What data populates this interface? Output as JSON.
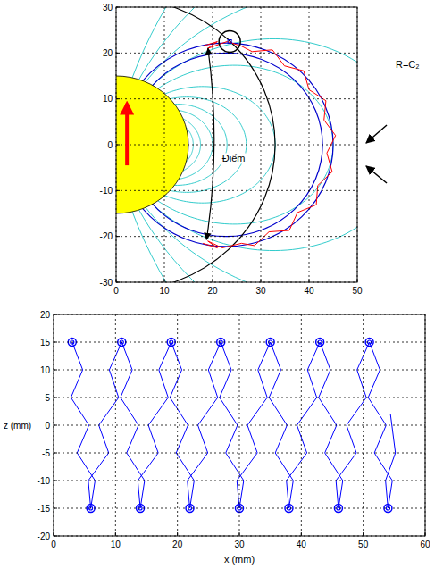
{
  "chart_data": [
    {
      "type": "field_diagram",
      "xlim": [
        0,
        50
      ],
      "ylim": [
        -30,
        30
      ],
      "xticks": [
        0,
        10,
        20,
        30,
        40,
        50
      ],
      "yticks": [
        -30,
        -20,
        -10,
        0,
        10,
        20,
        30
      ],
      "grid": true,
      "earth_radius": 15,
      "field_lines": [
        16,
        17.5,
        20,
        23,
        27,
        33,
        45,
        60,
        90,
        150,
        300
      ],
      "circles": [
        {
          "cx": 22.8,
          "cz": 0,
          "r": 22.2,
          "color": "#0000cc"
        },
        {
          "cx": 22.8,
          "cz": 0,
          "r": 20,
          "color": "#0000cc"
        },
        {
          "cx": 1.07,
          "cz": 0,
          "r": 31.9,
          "color": "#000000"
        }
      ],
      "series": [
        {
          "color": "#ff0000",
          "x": [
            18,
            21,
            19,
            23,
            26,
            28.2,
            32.4,
            34.9,
            38.9,
            40.0,
            43.5,
            43.1,
            45.5,
            43.7,
            44.8,
            41.8,
            41.5,
            37.6,
            35.9,
            31.7,
            28.7,
            26,
            22,
            19,
            21,
            18
          ],
          "values": [
            21.5,
            22.5,
            21,
            22.5,
            21.5,
            20.3,
            20.7,
            17.2,
            16.1,
            12.0,
            9.6,
            5.4,
            2.0,
            -1.8,
            -5.9,
            -8.9,
            -13.1,
            -14.8,
            -18.7,
            -19.0,
            -22.0,
            -21.5,
            -22.5,
            -21,
            -22.5,
            -21.5
          ]
        }
      ],
      "annotations": [
        {
          "text": "Điểm",
          "x": 22,
          "y": -3
        },
        {
          "text": "R=C₂"
        }
      ]
    },
    {
      "type": "line",
      "xlim": [
        0,
        60
      ],
      "ylim": [
        -20,
        20
      ],
      "xticks": [
        0,
        10,
        20,
        30,
        40,
        50,
        60
      ],
      "yticks": [
        -20,
        -15,
        -10,
        -5,
        0,
        5,
        10,
        15,
        20
      ],
      "x_label": "x (mm)",
      "y_label": "z (mm)",
      "grid": true,
      "series": [
        {
          "type": "line",
          "color": "#0000ff",
          "x": [
            3,
            4.7,
            2.8,
            5.7,
            3.8,
            6.7,
            6,
            5.6,
            8.9,
            7.3,
            10.5,
            9,
            11,
            12.7,
            10.8,
            13.7,
            11.8,
            14.7,
            14,
            13.6,
            16.9,
            15.3,
            18.5,
            17,
            19,
            20.7,
            18.8,
            21.7,
            19.8,
            22.7,
            22,
            21.6,
            24.9,
            23.3,
            26.5,
            25,
            27,
            28.7,
            26.8,
            29.7,
            27.8,
            30.7,
            30,
            29.6,
            32.9,
            31.3,
            34.5,
            33,
            35,
            36.7,
            34.8,
            37.7,
            35.8,
            38.7,
            38,
            37.6,
            40.9,
            39.3,
            42.5,
            41,
            43,
            44.7,
            42.8,
            45.7,
            43.8,
            46.7,
            46,
            45.6,
            48.9,
            47.3,
            50.5,
            49,
            51,
            52.7,
            50.8,
            53.7,
            51.8,
            54.7,
            54,
            53.6,
            55.2,
            54.4
          ],
          "values": [
            15,
            10,
            5,
            0,
            -5,
            -10,
            -15,
            -10,
            -5,
            0,
            5,
            10,
            15,
            10,
            5,
            0,
            -5,
            -10,
            -15,
            -10,
            -5,
            0,
            5,
            10,
            15,
            10,
            5,
            0,
            -5,
            -10,
            -15,
            -10,
            -5,
            0,
            5,
            10,
            15,
            10,
            5,
            0,
            -5,
            -10,
            -15,
            -10,
            -5,
            0,
            5,
            10,
            15,
            10,
            5,
            0,
            -5,
            -10,
            -15,
            -10,
            -5,
            0,
            5,
            10,
            15,
            10,
            5,
            0,
            -5,
            -10,
            -15,
            -10,
            -5,
            0,
            5,
            10,
            15,
            10,
            5,
            0,
            -5,
            -10,
            -15,
            -10,
            -5,
            2
          ]
        },
        {
          "type": "scatter",
          "marker": "circle",
          "color": "#0000ff",
          "x": [
            3,
            11,
            19,
            27,
            35,
            43,
            51,
            6,
            14,
            22,
            30,
            38,
            46,
            54
          ],
          "values": [
            15,
            15,
            15,
            15,
            15,
            15,
            15,
            -15,
            -15,
            -15,
            -15,
            -15,
            -15,
            -15
          ]
        }
      ]
    }
  ]
}
